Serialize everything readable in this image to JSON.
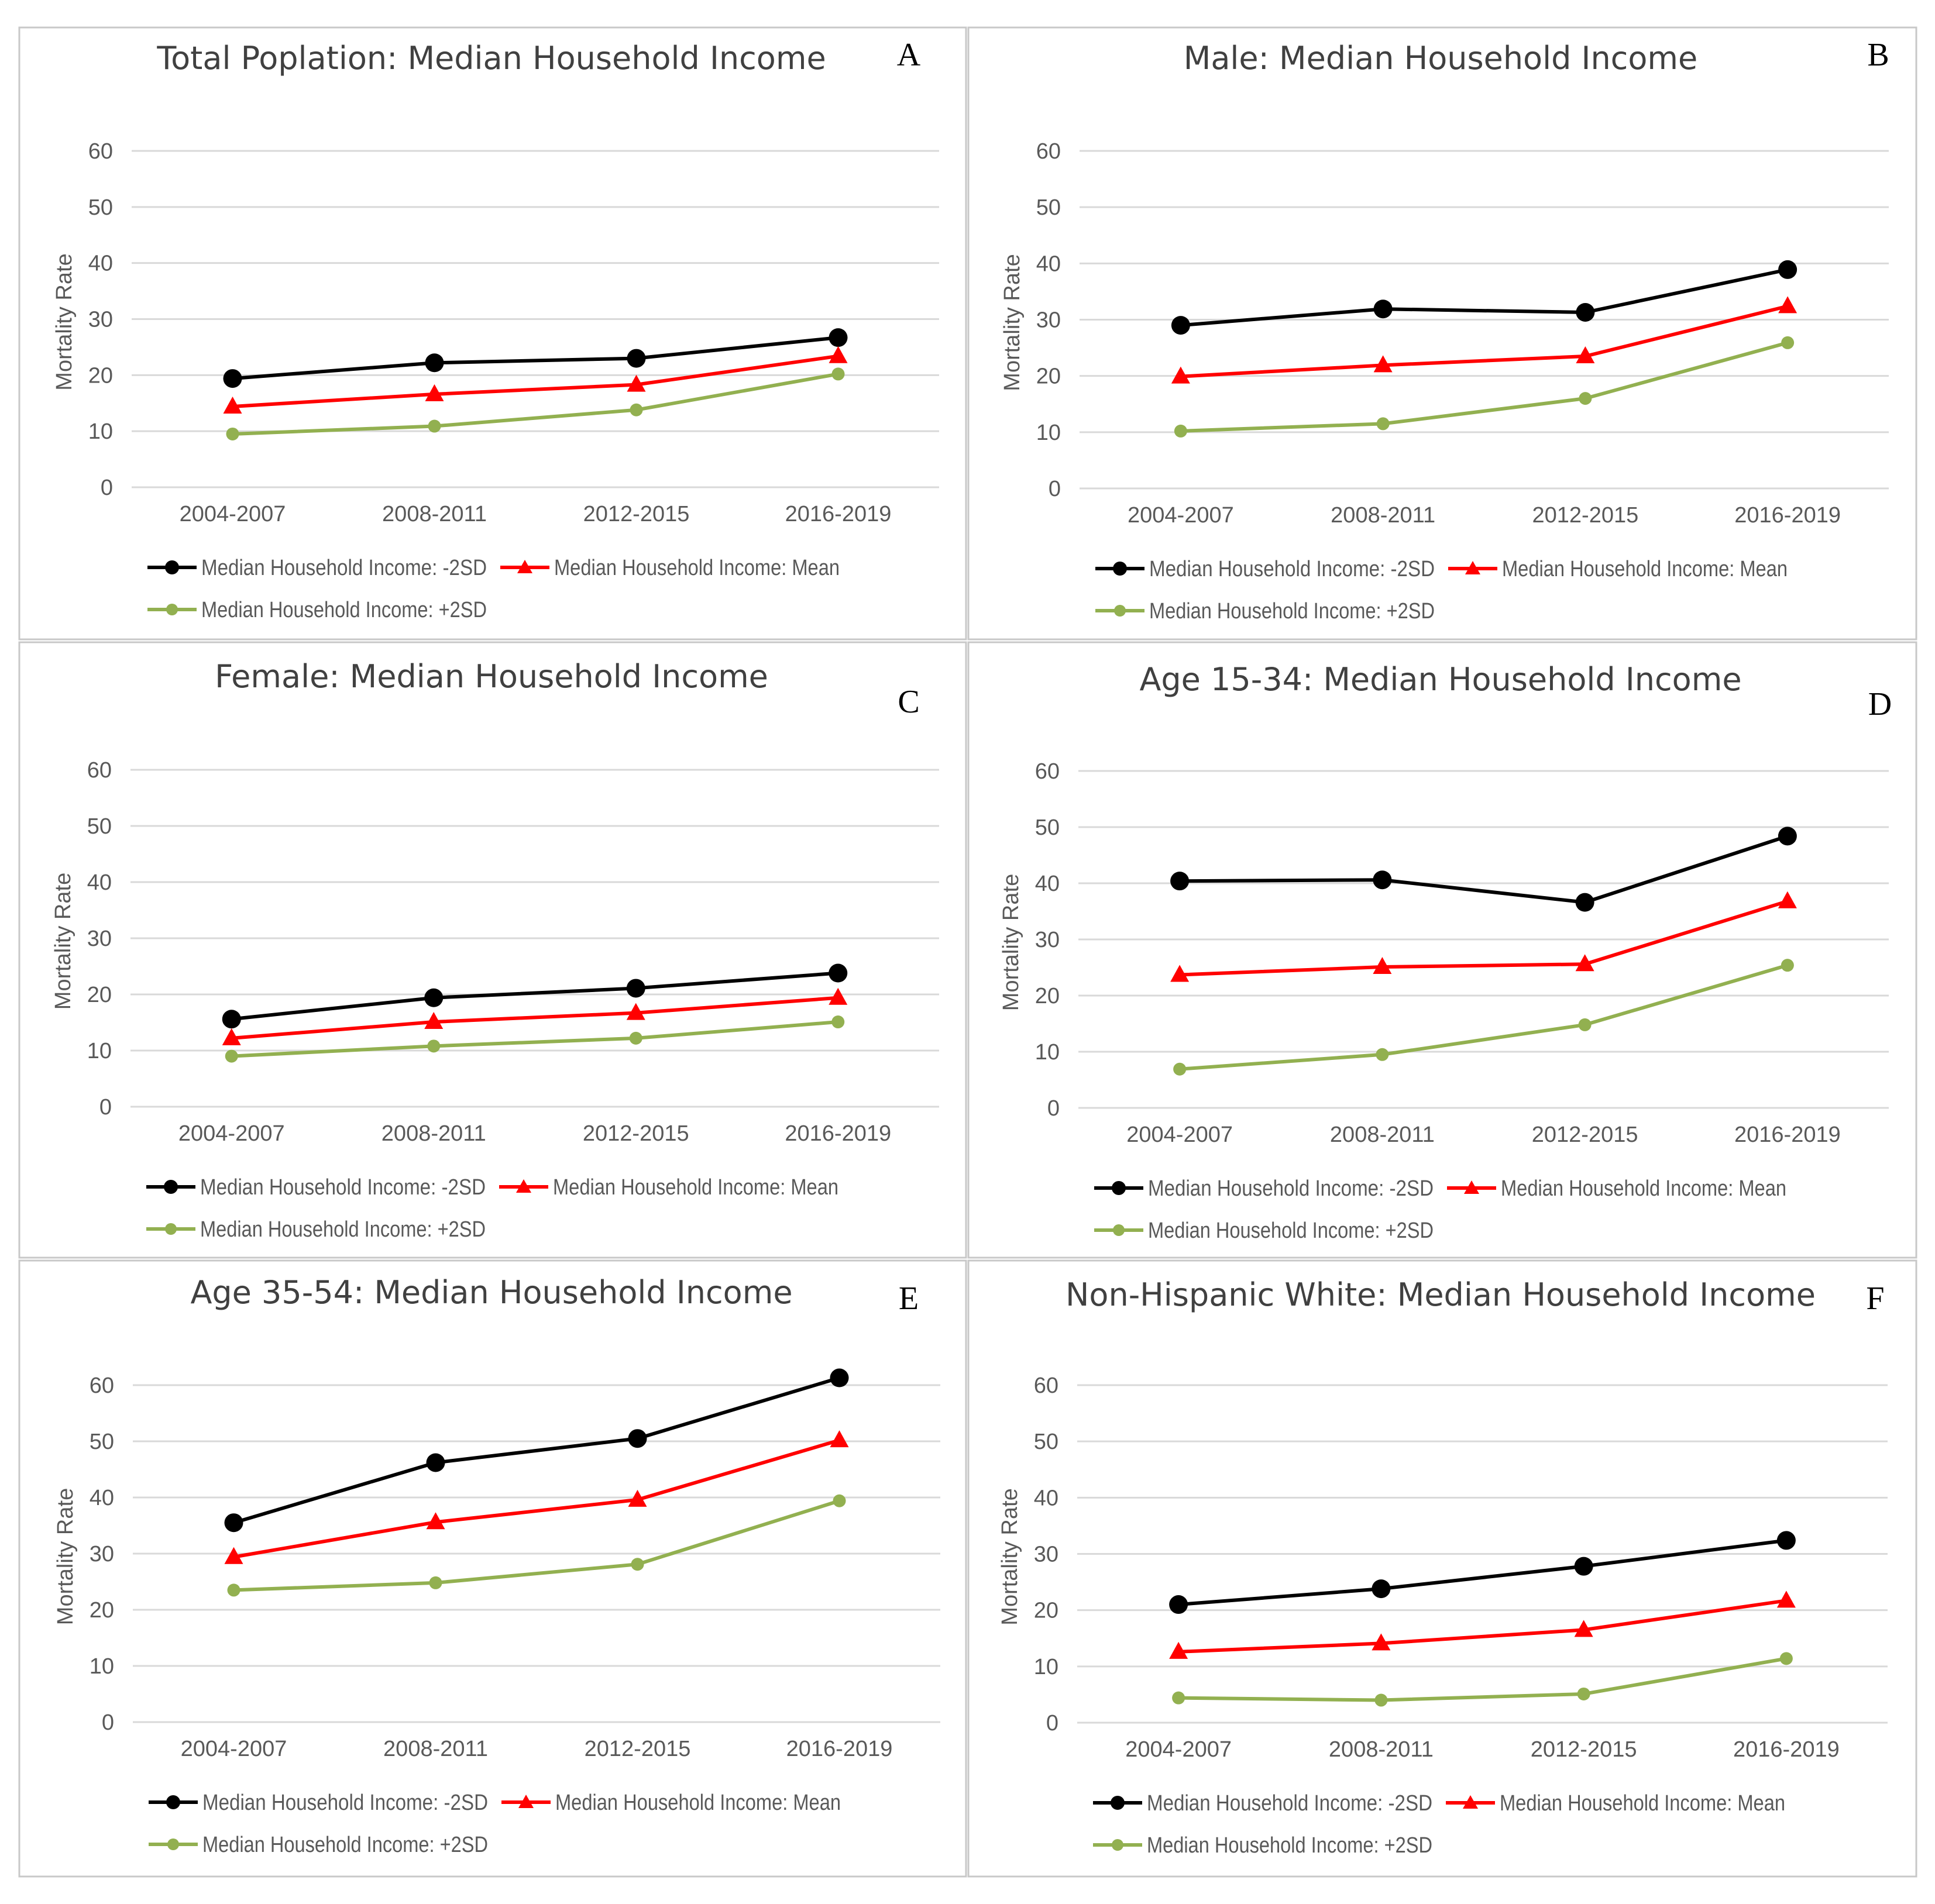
{
  "colors": {
    "minus_2sd": "#000000",
    "mean": "#ff0000",
    "plus_2sd": "#92b050",
    "grid": "#d9d9d9",
    "panel_border": "#c8c8c8"
  },
  "chart_data": [
    {
      "letter": "A",
      "type": "line",
      "title": "Total Poplation: Median Household Income",
      "xlabel": "",
      "ylabel": "Mortality Rate",
      "categories": [
        "2004-2007",
        "2008-2011",
        "2012-2015",
        "2016-2019"
      ],
      "ylim": [
        0,
        60
      ],
      "yticks": [
        0,
        10,
        20,
        30,
        40,
        50,
        60
      ],
      "grid": true,
      "legend": "bottom",
      "series": [
        {
          "name": "Median Household Income: -2SD",
          "marker": "circle",
          "color": "#000000",
          "values": [
            19.4,
            22.2,
            23.0,
            26.7
          ]
        },
        {
          "name": "Median Household Income: Mean",
          "marker": "triangle",
          "color": "#ff0000",
          "values": [
            14.4,
            16.6,
            18.3,
            23.4
          ]
        },
        {
          "name": "Median Household Income: +2SD",
          "marker": "dot",
          "color": "#92b050",
          "values": [
            9.5,
            10.9,
            13.8,
            20.2
          ]
        }
      ]
    },
    {
      "letter": "B",
      "type": "line",
      "title": "Male: Median Household Income",
      "xlabel": "",
      "ylabel": "Mortality Rate",
      "categories": [
        "2004-2007",
        "2008-2011",
        "2012-2015",
        "2016-2019"
      ],
      "ylim": [
        0,
        60
      ],
      "yticks": [
        0,
        10,
        20,
        30,
        40,
        50,
        60
      ],
      "grid": true,
      "legend": "bottom",
      "series": [
        {
          "name": "Median Household Income: -2SD",
          "marker": "circle",
          "color": "#000000",
          "values": [
            29.0,
            31.9,
            31.3,
            38.9
          ]
        },
        {
          "name": "Median Household Income: Mean",
          "marker": "triangle",
          "color": "#ff0000",
          "values": [
            19.9,
            21.9,
            23.5,
            32.4
          ]
        },
        {
          "name": "Median Household Income: +2SD",
          "marker": "dot",
          "color": "#92b050",
          "values": [
            10.2,
            11.5,
            16.0,
            25.9
          ]
        }
      ]
    },
    {
      "letter": "C",
      "type": "line",
      "title": "Female: Median Household Income",
      "xlabel": "",
      "ylabel": "Mortality Rate",
      "categories": [
        "2004-2007",
        "2008-2011",
        "2012-2015",
        "2016-2019"
      ],
      "ylim": [
        0,
        60
      ],
      "yticks": [
        0,
        10,
        20,
        30,
        40,
        50,
        60
      ],
      "grid": true,
      "legend": "bottom",
      "series": [
        {
          "name": "Median Household Income: -2SD",
          "marker": "circle",
          "color": "#000000",
          "values": [
            15.6,
            19.4,
            21.1,
            23.8
          ]
        },
        {
          "name": "Median Household Income: Mean",
          "marker": "triangle",
          "color": "#ff0000",
          "values": [
            12.2,
            15.1,
            16.7,
            19.4
          ]
        },
        {
          "name": "Median Household Income: +2SD",
          "marker": "dot",
          "color": "#92b050",
          "values": [
            9.0,
            10.8,
            12.2,
            15.1
          ]
        }
      ]
    },
    {
      "letter": "D",
      "type": "line",
      "title": "Age 15-34: Median Household Income",
      "xlabel": "",
      "ylabel": "Mortality Rate",
      "categories": [
        "2004-2007",
        "2008-2011",
        "2012-2015",
        "2016-2019"
      ],
      "ylim": [
        0,
        60
      ],
      "yticks": [
        0,
        10,
        20,
        30,
        40,
        50,
        60
      ],
      "grid": true,
      "legend": "bottom",
      "series": [
        {
          "name": "Median Household Income: -2SD",
          "marker": "circle",
          "color": "#000000",
          "values": [
            40.4,
            40.6,
            36.6,
            48.4
          ]
        },
        {
          "name": "Median Household Income: Mean",
          "marker": "triangle",
          "color": "#ff0000",
          "values": [
            23.7,
            25.1,
            25.6,
            36.8
          ]
        },
        {
          "name": "Median Household Income: +2SD",
          "marker": "dot",
          "color": "#92b050",
          "values": [
            6.9,
            9.5,
            14.8,
            25.4
          ]
        }
      ]
    },
    {
      "letter": "E",
      "type": "line",
      "title": "Age 35-54: Median Household Income",
      "xlabel": "",
      "ylabel": "Mortality Rate",
      "categories": [
        "2004-2007",
        "2008-2011",
        "2012-2015",
        "2016-2019"
      ],
      "ylim": [
        0,
        60
      ],
      "yticks": [
        0,
        10,
        20,
        30,
        40,
        50,
        60
      ],
      "grid": true,
      "legend": "bottom",
      "series": [
        {
          "name": "Median Household Income: -2SD",
          "marker": "circle",
          "color": "#000000",
          "values": [
            35.5,
            46.2,
            50.5,
            61.3
          ]
        },
        {
          "name": "Median Household Income: Mean",
          "marker": "triangle",
          "color": "#ff0000",
          "values": [
            29.4,
            35.6,
            39.6,
            50.2
          ]
        },
        {
          "name": "Median Household Income: +2SD",
          "marker": "dot",
          "color": "#92b050",
          "values": [
            23.5,
            24.8,
            28.1,
            39.4
          ]
        }
      ]
    },
    {
      "letter": "F",
      "type": "line",
      "title": "Non-Hispanic White: Median Household Income",
      "xlabel": "",
      "ylabel": "Mortality Rate",
      "categories": [
        "2004-2007",
        "2008-2011",
        "2012-2015",
        "2016-2019"
      ],
      "ylim": [
        0,
        60
      ],
      "yticks": [
        0,
        10,
        20,
        30,
        40,
        50,
        60
      ],
      "grid": true,
      "legend": "bottom",
      "series": [
        {
          "name": "Median Household Income: -2SD",
          "marker": "circle",
          "color": "#000000",
          "values": [
            21.0,
            23.8,
            27.8,
            32.4
          ]
        },
        {
          "name": "Median Household Income: Mean",
          "marker": "triangle",
          "color": "#ff0000",
          "values": [
            12.6,
            14.1,
            16.5,
            21.7
          ]
        },
        {
          "name": "Median Household Income: +2SD",
          "marker": "dot",
          "color": "#92b050",
          "values": [
            4.4,
            4.0,
            5.1,
            11.4
          ]
        }
      ]
    }
  ]
}
